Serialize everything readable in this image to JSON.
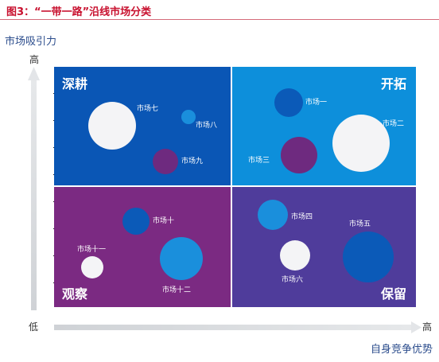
{
  "figure": {
    "title": "图3：“一带一路”沿线市场分类"
  },
  "axes": {
    "y_label": "市场吸引力",
    "y_high": "高",
    "y_low": "低",
    "x_label": "自身竞争优势",
    "x_high": "高"
  },
  "quadrants": {
    "top_left": "深耕",
    "top_right": "开拓",
    "bottom_left": "观察",
    "bottom_right": "保留"
  },
  "markets": [
    {
      "id": "m7",
      "label": "市场七"
    },
    {
      "id": "m8",
      "label": "市场八"
    },
    {
      "id": "m9",
      "label": "市场九"
    },
    {
      "id": "m1",
      "label": "市场一"
    },
    {
      "id": "m2",
      "label": "市场二"
    },
    {
      "id": "m3",
      "label": "市场三"
    },
    {
      "id": "m10",
      "label": "市场十"
    },
    {
      "id": "m11",
      "label": "市场十一"
    },
    {
      "id": "m12",
      "label": "市场十二"
    },
    {
      "id": "m4",
      "label": "市场四"
    },
    {
      "id": "m5",
      "label": "市场五"
    },
    {
      "id": "m6",
      "label": "市场六"
    }
  ],
  "colors": {
    "quadrant_top_left": "#0a56b5",
    "quadrant_top_right": "#0d8fdb",
    "quadrant_bottom_left": "#7b2a82",
    "quadrant_bottom_right": "#4f3c9b",
    "bubble_white": "#f4f4f6",
    "bubble_blue": "#0b5ab8",
    "bubble_sky": "#1a8fdc",
    "bubble_purple": "#6e2a7f",
    "title_red": "#c8102e"
  }
}
